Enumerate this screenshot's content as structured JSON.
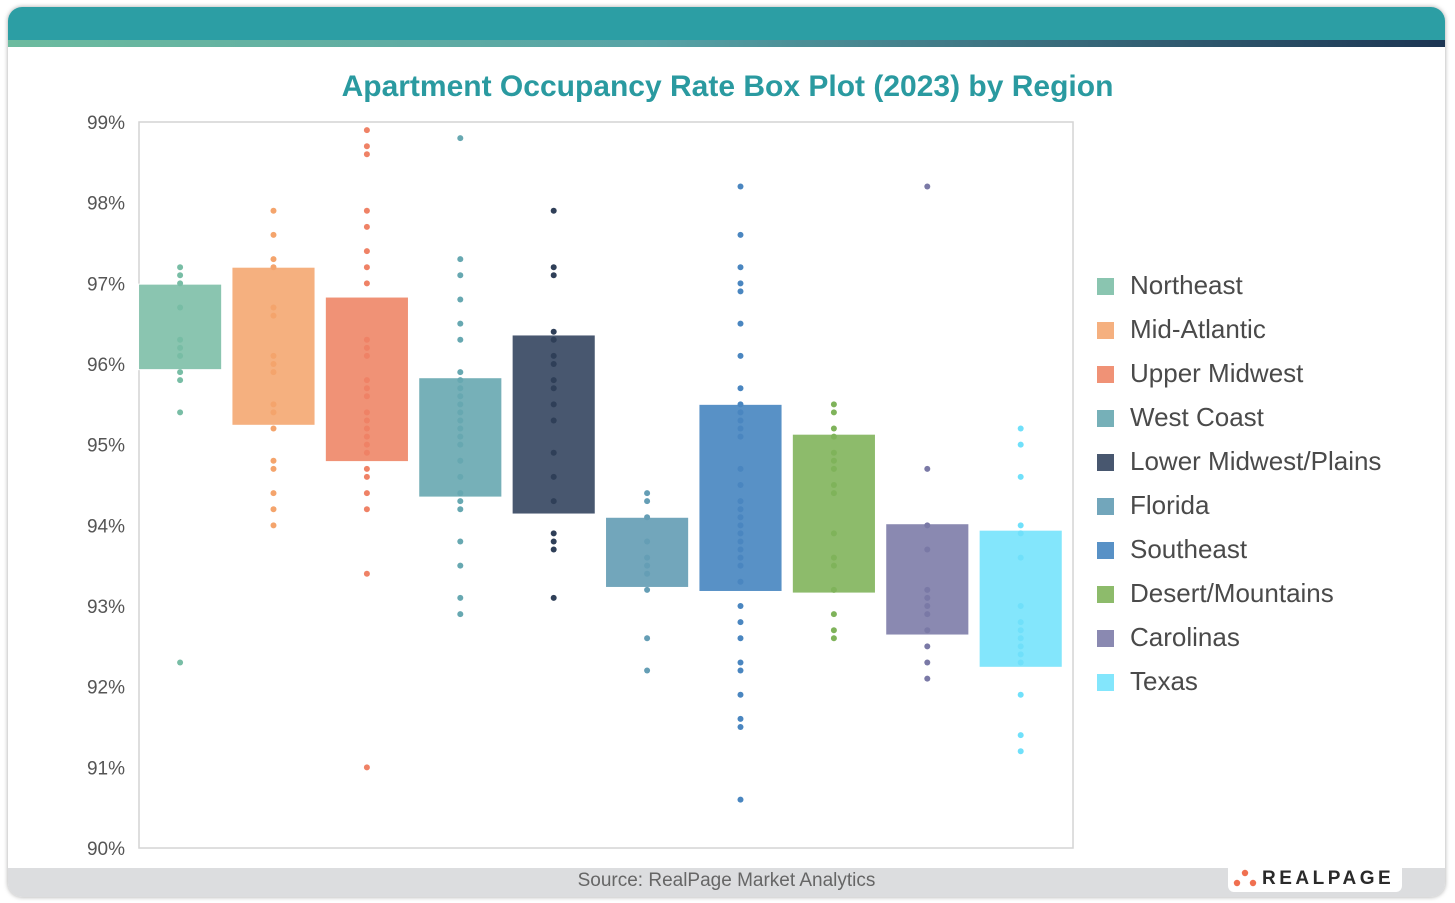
{
  "header": {
    "band_color": "#2c9ea4"
  },
  "chart_data": {
    "type": "box",
    "title": "Apartment Occupancy Rate Box Plot (2023) by Region",
    "xlabel": "",
    "ylabel": "",
    "ylim": [
      90,
      99
    ],
    "yticks": [
      "90%",
      "91%",
      "92%",
      "93%",
      "94%",
      "95%",
      "96%",
      "97%",
      "98%",
      "99%"
    ],
    "ytick_values": [
      90,
      91,
      92,
      93,
      94,
      95,
      96,
      97,
      98,
      99
    ],
    "grid": false,
    "legend_position": "right",
    "series": [
      {
        "name": "Northeast",
        "color": "#8ac5b0",
        "dot_color": "#78bda5",
        "box": [
          95.93,
          96.99
        ],
        "points": [
          97.2,
          97.1,
          97.0,
          96.7,
          96.3,
          96.2,
          96.1,
          95.9,
          95.8,
          95.4,
          92.3
        ]
      },
      {
        "name": "Mid-Atlantic",
        "color": "#f5b07f",
        "dot_color": "#f4a46c",
        "box": [
          95.24,
          97.2
        ],
        "points": [
          97.9,
          97.6,
          97.3,
          97.2,
          96.7,
          96.6,
          96.1,
          96.0,
          95.9,
          95.5,
          95.4,
          95.2,
          94.8,
          94.7,
          94.4,
          94.2,
          94.0
        ]
      },
      {
        "name": "Upper Midwest",
        "color": "#f09276",
        "dot_color": "#ef8266",
        "box": [
          94.79,
          96.83
        ],
        "points": [
          98.9,
          98.7,
          98.6,
          97.9,
          97.7,
          97.4,
          97.2,
          97.0,
          96.3,
          96.2,
          96.1,
          95.8,
          95.7,
          95.6,
          95.4,
          95.3,
          95.2,
          95.1,
          95.0,
          94.9,
          94.7,
          94.6,
          94.4,
          94.2,
          93.4,
          91.0
        ]
      },
      {
        "name": "West Coast",
        "color": "#76b0b8",
        "dot_color": "#67a8b1",
        "box": [
          94.35,
          95.83
        ],
        "points": [
          98.8,
          97.3,
          97.1,
          96.8,
          96.5,
          96.3,
          95.9,
          95.8,
          95.7,
          95.6,
          95.5,
          95.4,
          95.3,
          95.2,
          95.1,
          95.0,
          94.8,
          94.6,
          94.4,
          94.3,
          94.2,
          93.8,
          93.5,
          93.1,
          92.9
        ]
      },
      {
        "name": "Lower Midwest/Plains",
        "color": "#48576f",
        "dot_color": "#2f3f58",
        "box": [
          94.14,
          96.36
        ],
        "points": [
          97.9,
          97.2,
          97.1,
          96.4,
          96.3,
          96.1,
          96.0,
          95.8,
          95.7,
          95.5,
          95.3,
          94.9,
          94.6,
          94.3,
          93.9,
          93.8,
          93.7,
          93.1
        ]
      },
      {
        "name": "Florida",
        "color": "#72a6bb",
        "dot_color": "#659eb5",
        "box": [
          93.23,
          94.1
        ],
        "points": [
          94.4,
          94.3,
          94.1,
          93.8,
          93.6,
          93.5,
          93.4,
          93.2,
          92.6,
          92.2
        ]
      },
      {
        "name": "Southeast",
        "color": "#5891c6",
        "dot_color": "#4a86c0",
        "box": [
          93.18,
          95.5
        ],
        "points": [
          98.2,
          97.6,
          97.2,
          97.0,
          96.9,
          96.5,
          96.1,
          95.7,
          95.5,
          95.4,
          95.3,
          95.2,
          95.1,
          94.7,
          94.5,
          94.3,
          94.2,
          94.1,
          94.0,
          93.9,
          93.8,
          93.7,
          93.6,
          93.5,
          93.3,
          93.0,
          92.8,
          92.6,
          92.3,
          92.2,
          91.9,
          91.6,
          91.5,
          90.6
        ]
      },
      {
        "name": "Desert/Mountains",
        "color": "#8dbb6b",
        "dot_color": "#7fb35a",
        "box": [
          93.16,
          95.13
        ],
        "points": [
          95.5,
          95.4,
          95.2,
          95.1,
          94.9,
          94.8,
          94.7,
          94.5,
          94.4,
          93.9,
          93.6,
          93.5,
          93.2,
          92.9,
          92.7,
          92.6
        ]
      },
      {
        "name": "Carolinas",
        "color": "#8a89b1",
        "dot_color": "#7a79a6",
        "box": [
          92.64,
          94.02
        ],
        "points": [
          98.2,
          94.7,
          94.0,
          93.7,
          93.2,
          93.1,
          93.0,
          92.9,
          92.7,
          92.5,
          92.3,
          92.1
        ]
      },
      {
        "name": "Texas",
        "color": "#83e6fc",
        "dot_color": "#70e0fa",
        "box": [
          92.24,
          93.94
        ],
        "points": [
          95.2,
          95.0,
          94.6,
          94.0,
          93.9,
          93.6,
          93.0,
          92.8,
          92.7,
          92.6,
          92.5,
          92.4,
          92.3,
          91.9,
          91.4,
          91.2
        ]
      }
    ]
  },
  "footer": {
    "source": "Source: RealPage Market Analytics",
    "logo_text": "REALPAGE",
    "logo_dot_color": "#f07050"
  }
}
